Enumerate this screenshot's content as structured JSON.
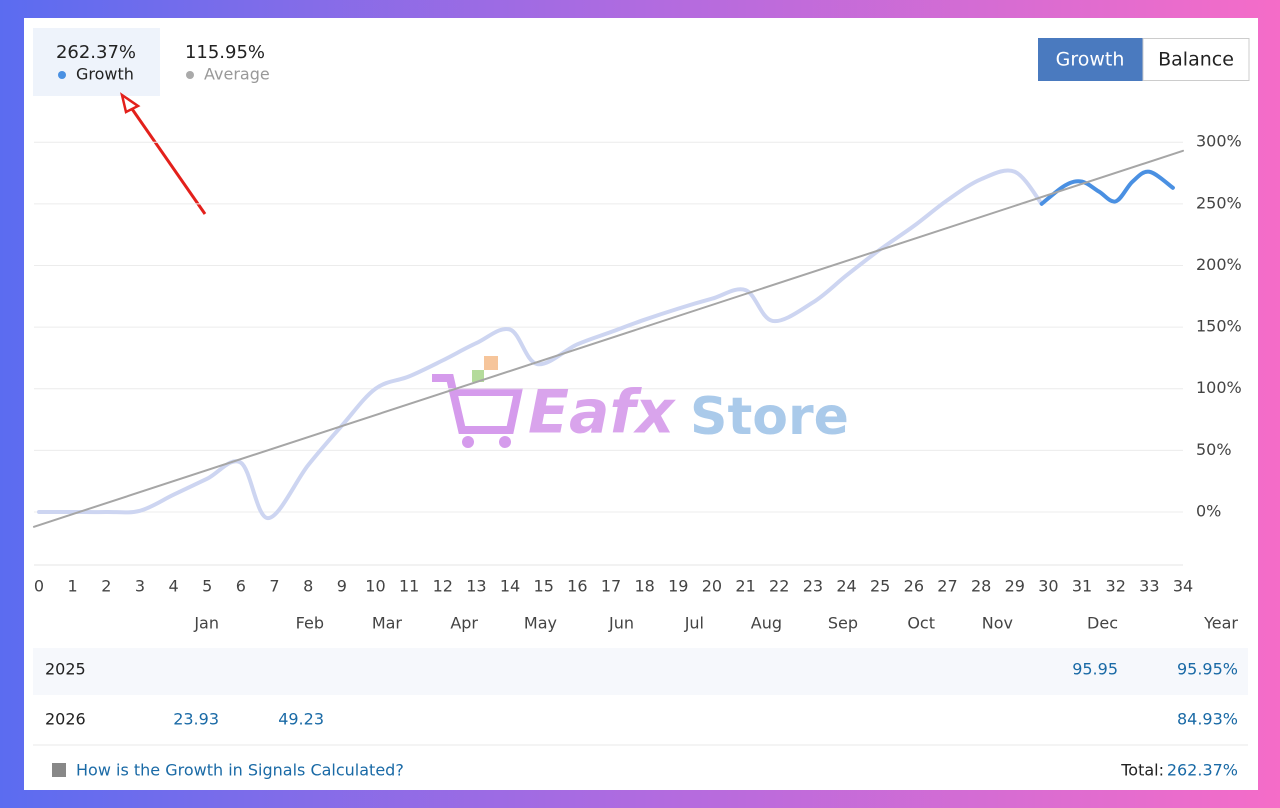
{
  "legend_values": [
    "262.37%",
    "115.95%"
  ],
  "buttons": [
    "Growth",
    "Balance"
  ],
  "chart_data": {
    "type": "line",
    "xlim": [
      0,
      34
    ],
    "ylim": [
      -43,
      318
    ],
    "xticks": [
      0,
      1,
      2,
      3,
      4,
      5,
      6,
      7,
      8,
      9,
      10,
      11,
      12,
      13,
      14,
      15,
      16,
      17,
      18,
      19,
      20,
      21,
      22,
      23,
      24,
      25,
      26,
      27,
      28,
      29,
      30,
      31,
      32,
      33,
      34
    ],
    "yticks": [
      {
        "value": 0,
        "label": "0%"
      },
      {
        "value": 50,
        "label": "50%"
      },
      {
        "value": 100,
        "label": "100%"
      },
      {
        "value": 150,
        "label": "150%"
      },
      {
        "value": 200,
        "label": "200%"
      },
      {
        "value": 250,
        "label": "250%"
      },
      {
        "value": 300,
        "label": "300%"
      }
    ],
    "grid": true,
    "watermark": [
      "Eafx",
      "Store"
    ],
    "series": [
      {
        "name": "Growth",
        "color": "#cdd5f1",
        "x": [
          0,
          1,
          2,
          3,
          4,
          5,
          6,
          6.8,
          8,
          9,
          10,
          11,
          12,
          13,
          14,
          14.8,
          16,
          17,
          18,
          19,
          20,
          21,
          21.8,
          23,
          24,
          25,
          26,
          27,
          28,
          29,
          29.8
        ],
        "values": [
          0,
          0,
          0,
          1,
          14,
          27,
          40,
          -5,
          38,
          70,
          100,
          110,
          123,
          137,
          148,
          120,
          136,
          146,
          156,
          165,
          173,
          180,
          155,
          170,
          192,
          213,
          232,
          253,
          270,
          276,
          250
        ],
        "highlight": {
          "color": "#4a90e2",
          "x": [
            29.8,
            30.5,
            31,
            31.5,
            32,
            32.5,
            33,
            33.7
          ],
          "values": [
            250,
            265,
            268,
            260,
            252,
            268,
            276,
            263
          ]
        }
      },
      {
        "name": "Average",
        "color": "#a6a6a6",
        "x": [
          -0.15,
          34
        ],
        "values": [
          -12,
          293
        ]
      }
    ]
  },
  "table": {
    "columns": [
      "Jan",
      "Feb",
      "Mar",
      "Apr",
      "May",
      "Jun",
      "Jul",
      "Aug",
      "Sep",
      "Oct",
      "Nov",
      "Dec",
      "Year"
    ],
    "rows": [
      {
        "year": "2025",
        "cells": [
          null,
          null,
          null,
          null,
          null,
          null,
          null,
          null,
          null,
          null,
          null,
          95.95,
          "95.95%"
        ]
      },
      {
        "year": "2026",
        "cells": [
          23.93,
          49.23,
          null,
          null,
          null,
          null,
          null,
          null,
          null,
          null,
          null,
          null,
          "84.93%"
        ]
      }
    ]
  },
  "footer": {
    "link": "How is the Growth in Signals Calculated?",
    "total_label": "Total:",
    "total": "262.37%"
  }
}
